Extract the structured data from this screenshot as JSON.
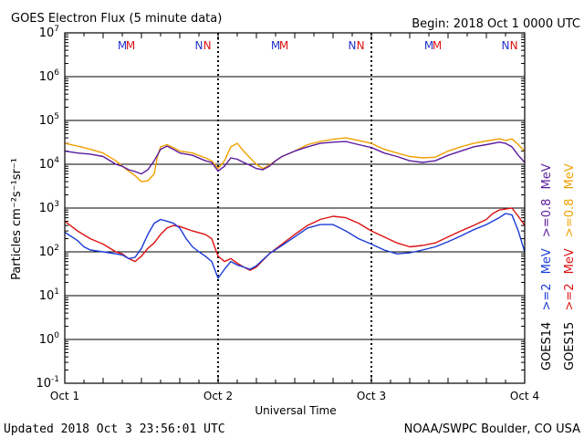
{
  "chart_data": {
    "type": "line",
    "title": "GOES Electron Flux (5 minute data)",
    "begin_label": "Begin: 2018 Oct 1 0000 UTC",
    "xlabel": "Universal Time",
    "ylabel": "Particles cm⁻²s⁻¹sr⁻¹",
    "footer_left": "Updated 2018 Oct  3 23:56:01 UTC",
    "footer_right": "NOAA/SWPC Boulder, CO USA",
    "xlim": [
      0,
      72
    ],
    "y_scale": "log",
    "ylim": [
      0.1,
      10000000
    ],
    "x_ticks": [
      {
        "value": 0,
        "label": "Oct 1"
      },
      {
        "value": 24,
        "label": "Oct 2"
      },
      {
        "value": 48,
        "label": "Oct 3"
      },
      {
        "value": 72,
        "label": "Oct 4"
      }
    ],
    "y_ticks": [
      {
        "value": 10000000,
        "base": "10",
        "exp": "7"
      },
      {
        "value": 1000000,
        "base": "10",
        "exp": "6"
      },
      {
        "value": 100000,
        "base": "10",
        "exp": "5"
      },
      {
        "value": 10000,
        "base": "10",
        "exp": "4"
      },
      {
        "value": 1000,
        "base": "10",
        "exp": "3"
      },
      {
        "value": 100,
        "base": "10",
        "exp": "2"
      },
      {
        "value": 10,
        "base": "10",
        "exp": "1"
      },
      {
        "value": 1,
        "base": "10",
        "exp": "0"
      },
      {
        "value": 0.1,
        "base": "10",
        "exp": "-1"
      }
    ],
    "threshold": 1000,
    "markers": [
      {
        "x": 9.0,
        "label": "M",
        "color": "#2233cc"
      },
      {
        "x": 10.3,
        "label": "M",
        "color": "#dd1111"
      },
      {
        "x": 21.0,
        "label": "N",
        "color": "#2233cc"
      },
      {
        "x": 22.3,
        "label": "N",
        "color": "#dd1111"
      },
      {
        "x": 33.0,
        "label": "M",
        "color": "#2233cc"
      },
      {
        "x": 34.3,
        "label": "M",
        "color": "#dd1111"
      },
      {
        "x": 45.0,
        "label": "N",
        "color": "#2233cc"
      },
      {
        "x": 46.3,
        "label": "N",
        "color": "#dd1111"
      },
      {
        "x": 57.0,
        "label": "M",
        "color": "#2233cc"
      },
      {
        "x": 58.3,
        "label": "M",
        "color": "#dd1111"
      },
      {
        "x": 69.0,
        "label": "N",
        "color": "#2233cc"
      },
      {
        "x": 70.3,
        "label": "N",
        "color": "#dd1111"
      }
    ],
    "legend": {
      "goes14": {
        "label": "GOES14",
        "high": ">=2",
        "low": ">=0.8",
        "unit": "MeV"
      },
      "goes15": {
        "label": "GOES15",
        "high": ">=2",
        "low": ">=0.8",
        "unit": "MeV"
      }
    },
    "series": [
      {
        "name": "GOES15 >=0.8 MeV",
        "color": "#f0a000",
        "points": [
          [
            0,
            30000
          ],
          [
            2,
            26000
          ],
          [
            4,
            22000
          ],
          [
            6,
            18000
          ],
          [
            8,
            12000
          ],
          [
            9,
            9000
          ],
          [
            10,
            7000
          ],
          [
            11,
            5500
          ],
          [
            12,
            4000
          ],
          [
            13,
            4200
          ],
          [
            14,
            6000
          ],
          [
            14.5,
            15000
          ],
          [
            15,
            25000
          ],
          [
            16,
            28000
          ],
          [
            17,
            24000
          ],
          [
            18,
            20000
          ],
          [
            20,
            18000
          ],
          [
            22,
            14000
          ],
          [
            23,
            12000
          ],
          [
            24,
            8000
          ],
          [
            25,
            12000
          ],
          [
            26,
            25000
          ],
          [
            27,
            30000
          ],
          [
            28,
            20000
          ],
          [
            29,
            14000
          ],
          [
            30,
            10000
          ],
          [
            31,
            8000
          ],
          [
            32,
            9500
          ],
          [
            33,
            12000
          ],
          [
            34,
            15000
          ],
          [
            36,
            20000
          ],
          [
            38,
            28000
          ],
          [
            40,
            33000
          ],
          [
            42,
            37000
          ],
          [
            44,
            40000
          ],
          [
            46,
            35000
          ],
          [
            48,
            30000
          ],
          [
            50,
            22000
          ],
          [
            52,
            18000
          ],
          [
            54,
            15000
          ],
          [
            56,
            14000
          ],
          [
            58,
            14500
          ],
          [
            60,
            20000
          ],
          [
            62,
            25000
          ],
          [
            64,
            30000
          ],
          [
            66,
            34000
          ],
          [
            68,
            38000
          ],
          [
            69,
            35000
          ],
          [
            70,
            38000
          ],
          [
            71,
            28000
          ],
          [
            72,
            20000
          ]
        ]
      },
      {
        "name": "GOES14 >=0.8 MeV",
        "color": "#5a1a9e",
        "points": [
          [
            0,
            20000
          ],
          [
            2,
            18000
          ],
          [
            4,
            17000
          ],
          [
            6,
            15000
          ],
          [
            8,
            10000
          ],
          [
            9,
            9000
          ],
          [
            10,
            7500
          ],
          [
            11,
            6800
          ],
          [
            12,
            6000
          ],
          [
            13,
            7500
          ],
          [
            14,
            12000
          ],
          [
            15,
            22000
          ],
          [
            16,
            26000
          ],
          [
            17,
            22000
          ],
          [
            18,
            18000
          ],
          [
            20,
            16000
          ],
          [
            22,
            12000
          ],
          [
            23,
            11000
          ],
          [
            24,
            7000
          ],
          [
            25,
            9000
          ],
          [
            26,
            14000
          ],
          [
            27,
            13000
          ],
          [
            28,
            11000
          ],
          [
            29,
            9500
          ],
          [
            30,
            8000
          ],
          [
            31,
            7500
          ],
          [
            32,
            9000
          ],
          [
            33,
            12000
          ],
          [
            34,
            15000
          ],
          [
            36,
            20000
          ],
          [
            38,
            25000
          ],
          [
            40,
            30000
          ],
          [
            42,
            32000
          ],
          [
            44,
            33000
          ],
          [
            46,
            28000
          ],
          [
            48,
            24000
          ],
          [
            50,
            18000
          ],
          [
            52,
            15000
          ],
          [
            54,
            12000
          ],
          [
            56,
            11000
          ],
          [
            58,
            12000
          ],
          [
            60,
            16000
          ],
          [
            62,
            20000
          ],
          [
            64,
            25000
          ],
          [
            66,
            28000
          ],
          [
            68,
            32000
          ],
          [
            69,
            30000
          ],
          [
            70,
            25000
          ],
          [
            71,
            16000
          ],
          [
            72,
            11000
          ]
        ]
      },
      {
        "name": "GOES15 >=2 MeV",
        "color": "#dd1111",
        "points": [
          [
            0,
            500
          ],
          [
            2,
            300
          ],
          [
            4,
            200
          ],
          [
            6,
            150
          ],
          [
            8,
            100
          ],
          [
            9,
            90
          ],
          [
            10,
            70
          ],
          [
            11,
            60
          ],
          [
            12,
            80
          ],
          [
            13,
            120
          ],
          [
            14,
            160
          ],
          [
            15,
            250
          ],
          [
            16,
            350
          ],
          [
            17,
            400
          ],
          [
            18,
            380
          ],
          [
            20,
            300
          ],
          [
            22,
            250
          ],
          [
            23,
            200
          ],
          [
            24,
            80
          ],
          [
            25,
            60
          ],
          [
            26,
            70
          ],
          [
            27,
            55
          ],
          [
            28,
            45
          ],
          [
            29,
            38
          ],
          [
            30,
            45
          ],
          [
            32,
            90
          ],
          [
            34,
            150
          ],
          [
            36,
            250
          ],
          [
            38,
            400
          ],
          [
            40,
            550
          ],
          [
            42,
            650
          ],
          [
            44,
            600
          ],
          [
            46,
            450
          ],
          [
            48,
            300
          ],
          [
            50,
            220
          ],
          [
            52,
            160
          ],
          [
            54,
            130
          ],
          [
            56,
            140
          ],
          [
            58,
            160
          ],
          [
            60,
            220
          ],
          [
            62,
            300
          ],
          [
            64,
            400
          ],
          [
            66,
            550
          ],
          [
            67,
            750
          ],
          [
            68,
            900
          ],
          [
            69,
            950
          ],
          [
            70,
            1000
          ],
          [
            71,
            650
          ],
          [
            72,
            400
          ]
        ]
      },
      {
        "name": "GOES14 >=2 MeV",
        "color": "#1a3ad6",
        "points": [
          [
            0,
            280
          ],
          [
            2,
            180
          ],
          [
            3,
            130
          ],
          [
            4,
            110
          ],
          [
            6,
            100
          ],
          [
            8,
            90
          ],
          [
            9,
            85
          ],
          [
            10,
            70
          ],
          [
            11,
            75
          ],
          [
            12,
            120
          ],
          [
            13,
            250
          ],
          [
            14,
            450
          ],
          [
            15,
            550
          ],
          [
            16,
            500
          ],
          [
            17,
            450
          ],
          [
            18,
            350
          ],
          [
            19,
            200
          ],
          [
            20,
            130
          ],
          [
            21,
            100
          ],
          [
            22,
            80
          ],
          [
            23,
            60
          ],
          [
            24,
            25
          ],
          [
            25,
            40
          ],
          [
            26,
            60
          ],
          [
            27,
            50
          ],
          [
            28,
            45
          ],
          [
            29,
            40
          ],
          [
            30,
            48
          ],
          [
            32,
            90
          ],
          [
            34,
            140
          ],
          [
            36,
            220
          ],
          [
            38,
            350
          ],
          [
            40,
            420
          ],
          [
            42,
            420
          ],
          [
            44,
            300
          ],
          [
            46,
            200
          ],
          [
            48,
            150
          ],
          [
            50,
            110
          ],
          [
            52,
            90
          ],
          [
            54,
            95
          ],
          [
            56,
            110
          ],
          [
            58,
            130
          ],
          [
            60,
            170
          ],
          [
            62,
            230
          ],
          [
            64,
            320
          ],
          [
            66,
            420
          ],
          [
            68,
            600
          ],
          [
            69,
            750
          ],
          [
            70,
            700
          ],
          [
            71,
            300
          ],
          [
            72,
            100
          ]
        ]
      }
    ]
  }
}
